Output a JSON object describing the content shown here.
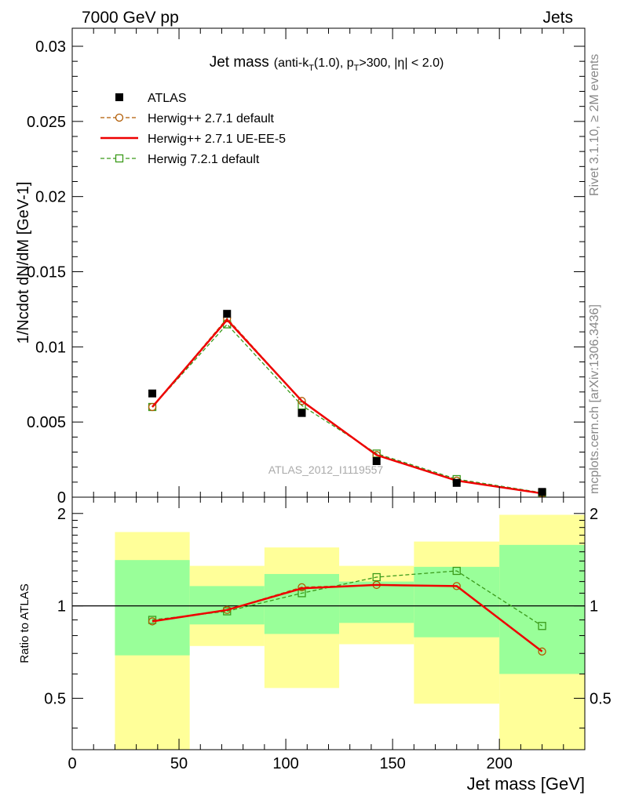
{
  "header": {
    "left": "7000 GeV pp",
    "right": "Jets"
  },
  "side_labels": {
    "rivet": "Rivet 3.1.10, ≥ 2M events",
    "mcplots": "mcplots.cern.ch [arXiv:1306.3436]"
  },
  "chart_data": [
    {
      "type": "scatter",
      "title": "Jet mass",
      "subtitle": "(anti-kT(1.0), pT>300, |η| < 2.0)",
      "ylabel": "1/Ncdot dN/dM [GeV-1]",
      "watermark": "ATLAS_2012_I1119557",
      "xlim": [
        0,
        240
      ],
      "ylim": [
        0,
        0.0312
      ],
      "yticks": [
        0,
        0.005,
        0.01,
        0.015,
        0.02,
        0.025,
        0.03
      ],
      "ytick_labels": [
        "0",
        "0.005",
        "0.01",
        "0.015",
        "0.02",
        "0.025",
        "0.03"
      ],
      "legend_position": "top-left",
      "x": [
        37.5,
        72.5,
        107.5,
        142.5,
        180,
        220
      ],
      "series": [
        {
          "name": "ATLAS",
          "style": "data-square",
          "color": "#000000",
          "values": [
            0.0069,
            0.0122,
            0.0056,
            0.0024,
            0.00095,
            0.00035
          ]
        },
        {
          "name": "Herwig++ 2.7.1 default",
          "style": "dashed-circle",
          "color": "#b05a00",
          "values": [
            0.006,
            0.0119,
            0.0064,
            0.0028,
            0.0011,
            0.00025
          ]
        },
        {
          "name": "Herwig++ 2.7.1 UE-EE-5",
          "style": "solid",
          "color": "#ee0000",
          "values": [
            0.006,
            0.0118,
            0.0064,
            0.0028,
            0.0011,
            0.00025
          ]
        },
        {
          "name": "Herwig 7.2.1 default",
          "style": "dashed-square",
          "color": "#3a9a1a",
          "values": [
            0.006,
            0.0115,
            0.0061,
            0.0029,
            0.0012,
            0.0003
          ]
        }
      ]
    },
    {
      "type": "line",
      "ylabel": "Ratio to ATLAS",
      "xlabel": "Jet mass [GeV]",
      "xlim": [
        0,
        240
      ],
      "ylim": [
        0.34,
        2.26
      ],
      "xticks": [
        0,
        50,
        100,
        150,
        200
      ],
      "xtick_labels": [
        "0",
        "50",
        "100",
        "150",
        "200"
      ],
      "yticks": [
        0.5,
        1,
        2
      ],
      "ytick_labels": [
        "0.5",
        "1",
        "2"
      ],
      "bins": [
        [
          20,
          55
        ],
        [
          55,
          90
        ],
        [
          90,
          125
        ],
        [
          125,
          160
        ],
        [
          160,
          200
        ],
        [
          200,
          240
        ]
      ],
      "band_outer": [
        [
          0.34,
          1.74
        ],
        [
          0.74,
          1.35
        ],
        [
          0.54,
          1.55
        ],
        [
          0.75,
          1.35
        ],
        [
          0.48,
          1.62
        ],
        [
          0.34,
          1.98
        ]
      ],
      "band_inner": [
        [
          0.69,
          1.41
        ],
        [
          0.87,
          1.16
        ],
        [
          0.81,
          1.27
        ],
        [
          0.88,
          1.2
        ],
        [
          0.79,
          1.34
        ],
        [
          0.6,
          1.58
        ]
      ],
      "reference": 1,
      "x": [
        37.5,
        72.5,
        107.5,
        142.5,
        180,
        220
      ],
      "series": [
        {
          "name": "Herwig++ 2.7.1 default",
          "style": "dashed-circle",
          "color": "#b05a00",
          "values": [
            0.89,
            0.97,
            1.15,
            1.17,
            1.16,
            0.71
          ]
        },
        {
          "name": "Herwig++ 2.7.1 UE-EE-5",
          "style": "solid",
          "color": "#ee0000",
          "values": [
            0.89,
            0.97,
            1.14,
            1.17,
            1.16,
            0.71
          ]
        },
        {
          "name": "Herwig 7.2.1 default",
          "style": "dashed-square",
          "color": "#3a9a1a",
          "values": [
            0.9,
            0.96,
            1.1,
            1.24,
            1.3,
            0.86
          ]
        }
      ],
      "band_colors": {
        "outer": "#ffff99",
        "inner": "#99ff99"
      }
    }
  ]
}
